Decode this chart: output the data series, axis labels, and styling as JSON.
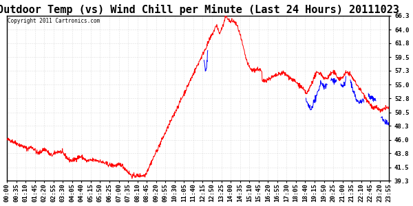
{
  "title": "Outdoor Temp (vs) Wind Chill per Minute (Last 24 Hours) 20111023",
  "copyright": "Copyright 2011 Cartronics.com",
  "ylim": [
    39.3,
    66.3
  ],
  "yticks": [
    39.3,
    41.5,
    43.8,
    46.0,
    48.3,
    50.5,
    52.8,
    55.0,
    57.3,
    59.5,
    61.8,
    64.0,
    66.3
  ],
  "xtick_labels": [
    "00:00",
    "00:35",
    "01:10",
    "01:45",
    "02:20",
    "02:55",
    "03:30",
    "04:05",
    "04:40",
    "05:15",
    "05:50",
    "06:25",
    "07:00",
    "07:35",
    "08:10",
    "08:45",
    "09:20",
    "09:55",
    "10:30",
    "11:05",
    "11:40",
    "12:15",
    "12:50",
    "13:25",
    "14:00",
    "14:35",
    "15:10",
    "15:45",
    "16:20",
    "16:55",
    "17:30",
    "18:05",
    "18:40",
    "19:15",
    "19:50",
    "20:25",
    "21:00",
    "21:35",
    "22:10",
    "22:45",
    "23:20",
    "23:55"
  ],
  "background_color": "#ffffff",
  "plot_bg_color": "#ffffff",
  "grid_color": "#bbbbbb",
  "line_color_red": "#ff0000",
  "line_color_blue": "#0000ff",
  "title_fontsize": 11,
  "copyright_fontsize": 5.5,
  "tick_fontsize": 6.5
}
